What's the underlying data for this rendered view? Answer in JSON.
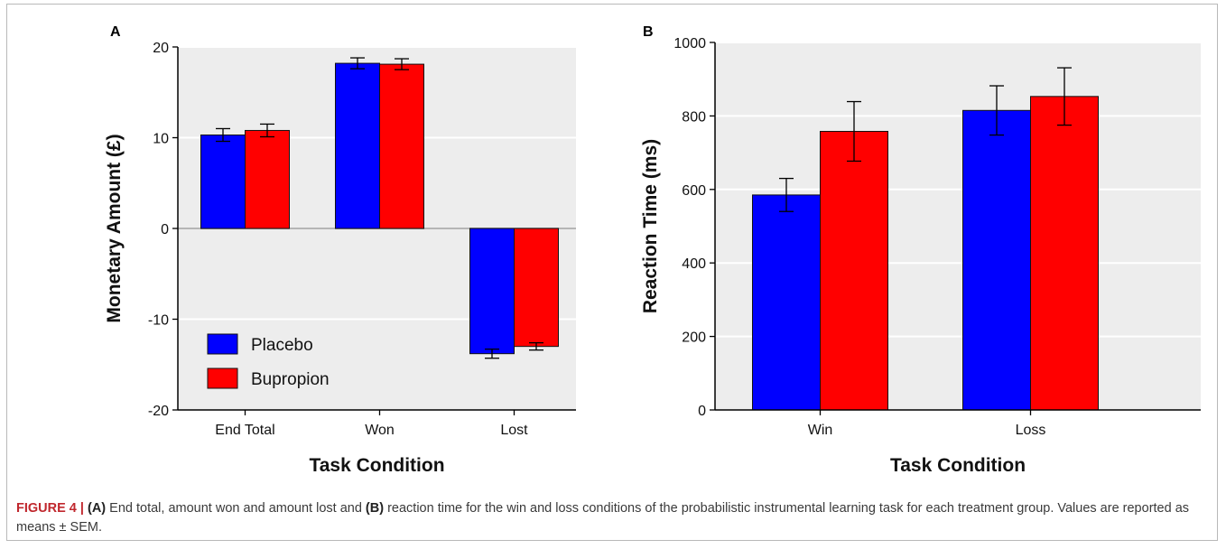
{
  "figure": {
    "caption_label": "FIGURE 4 |",
    "caption_a": "(A)",
    "caption_mid": " End total, amount won and amount lost and ",
    "caption_b": "(B)",
    "caption_rest": " reaction time for the win and loss conditions of the probabilistic instrumental learning task for each treatment group. Values are reported as means ± SEM."
  },
  "colors": {
    "placebo": "#0000ff",
    "bupropion": "#ff0000",
    "plot_bg": "#ededed",
    "grid": "#ffffff"
  },
  "chart_data": [
    {
      "panel": "A",
      "type": "bar",
      "xlabel": "Task Condition",
      "ylabel": "Monetary Amount (£)",
      "ylim": [
        -20,
        20
      ],
      "yticks": [
        -20,
        -10,
        0,
        10,
        20
      ],
      "grid": true,
      "legend_position": "bottom-left",
      "categories": [
        "End Total",
        "Won",
        "Lost"
      ],
      "series": [
        {
          "name": "Placebo",
          "values": [
            10.3,
            18.2,
            -13.8
          ],
          "sem": [
            0.7,
            0.6,
            0.5
          ]
        },
        {
          "name": "Bupropion",
          "values": [
            10.8,
            18.1,
            -13.0
          ],
          "sem": [
            0.7,
            0.6,
            0.4
          ]
        }
      ]
    },
    {
      "panel": "B",
      "type": "bar",
      "xlabel": "Task Condition",
      "ylabel": "Reaction Time (ms)",
      "ylim": [
        0,
        1000
      ],
      "yticks": [
        0,
        200,
        400,
        600,
        800,
        1000
      ],
      "grid": true,
      "categories": [
        "Win",
        "Loss"
      ],
      "series": [
        {
          "values": [
            585,
            815
          ],
          "sem": [
            45,
            67
          ]
        },
        {
          "values": [
            758,
            853
          ],
          "sem": [
            81,
            78
          ]
        }
      ]
    }
  ]
}
